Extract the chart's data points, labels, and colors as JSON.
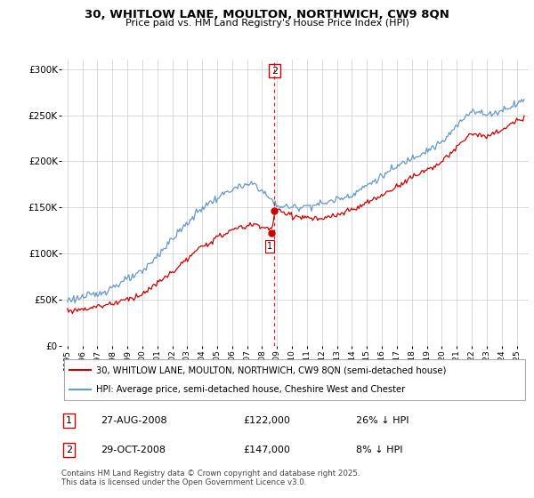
{
  "title": "30, WHITLOW LANE, MOULTON, NORTHWICH, CW9 8QN",
  "subtitle": "Price paid vs. HM Land Registry's House Price Index (HPI)",
  "legend_label_red": "30, WHITLOW LANE, MOULTON, NORTHWICH, CW9 8QN (semi-detached house)",
  "legend_label_blue": "HPI: Average price, semi-detached house, Cheshire West and Chester",
  "footer": "Contains HM Land Registry data © Crown copyright and database right 2025.\nThis data is licensed under the Open Government Licence v3.0.",
  "annotation1_label": "1",
  "annotation1_date": "27-AUG-2008",
  "annotation1_price": "£122,000",
  "annotation1_hpi": "26% ↓ HPI",
  "annotation2_label": "2",
  "annotation2_date": "29-OCT-2008",
  "annotation2_price": "£147,000",
  "annotation2_hpi": "8% ↓ HPI",
  "color_red": "#cc0000",
  "color_blue": "#6699cc",
  "color_grid": "#cccccc",
  "color_bg": "#ffffff",
  "ylim": [
    0,
    310000
  ],
  "yticks": [
    0,
    50000,
    100000,
    150000,
    200000,
    250000,
    300000
  ],
  "sale1_year": 2008.648,
  "sale1_price": 122000,
  "sale2_year": 2008.832,
  "sale2_price": 147000,
  "vline_x": 2008.832
}
